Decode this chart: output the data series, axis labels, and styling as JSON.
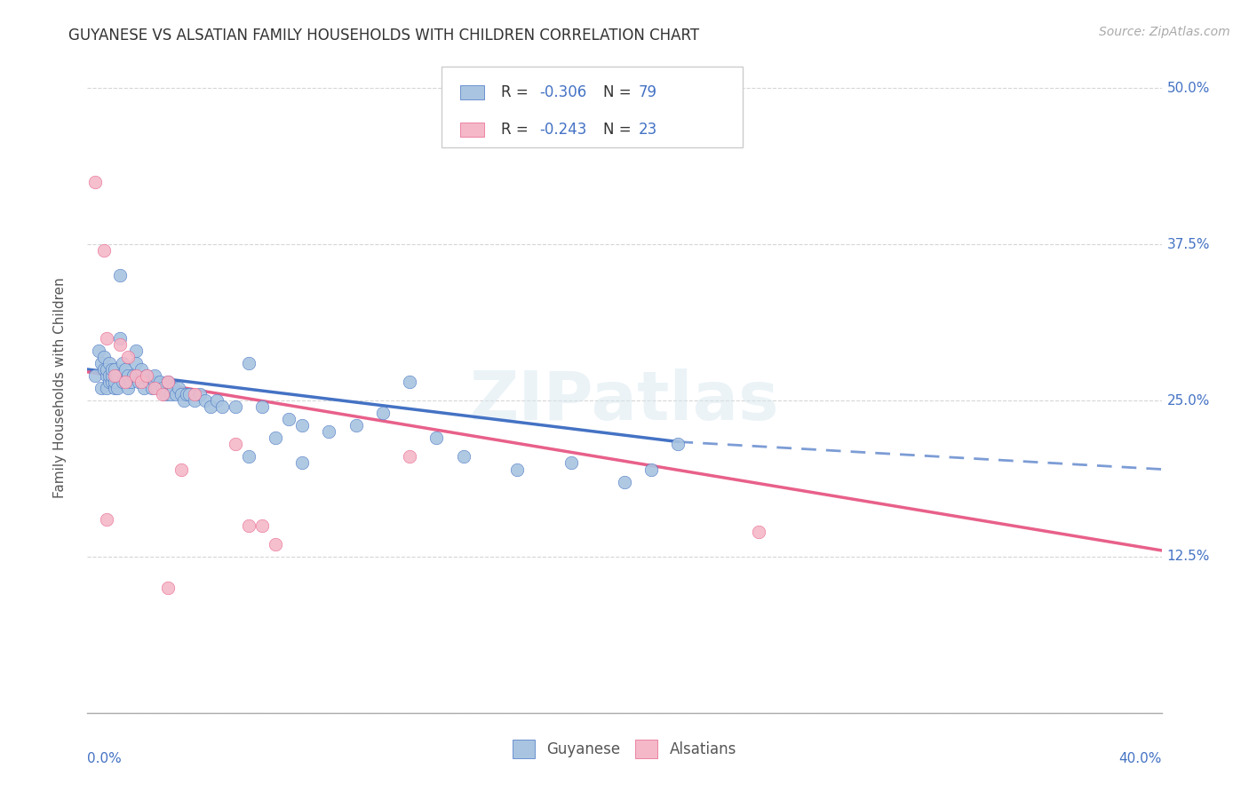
{
  "title": "GUYANESE VS ALSATIAN FAMILY HOUSEHOLDS WITH CHILDREN CORRELATION CHART",
  "source": "Source: ZipAtlas.com",
  "ylabel": "Family Households with Children",
  "xmin": 0.0,
  "xmax": 0.4,
  "ymin": 0.0,
  "ymax": 0.52,
  "guyanese_color": "#a8c4e0",
  "alsatian_color": "#f4b8c8",
  "guyanese_R": -0.306,
  "guyanese_N": 79,
  "alsatian_R": -0.243,
  "alsatian_N": 23,
  "blue_line_color": "#4472c4",
  "pink_line_color": "#e8608a",
  "watermark": "ZIPatlas",
  "guyanese_scatter_x": [
    0.003,
    0.004,
    0.005,
    0.005,
    0.006,
    0.006,
    0.007,
    0.007,
    0.007,
    0.008,
    0.008,
    0.008,
    0.009,
    0.009,
    0.009,
    0.01,
    0.01,
    0.01,
    0.011,
    0.011,
    0.012,
    0.012,
    0.013,
    0.013,
    0.014,
    0.014,
    0.015,
    0.015,
    0.016,
    0.017,
    0.018,
    0.018,
    0.019,
    0.02,
    0.02,
    0.021,
    0.022,
    0.023,
    0.024,
    0.025,
    0.025,
    0.026,
    0.027,
    0.028,
    0.029,
    0.03,
    0.031,
    0.032,
    0.033,
    0.034,
    0.035,
    0.036,
    0.037,
    0.038,
    0.04,
    0.042,
    0.044,
    0.046,
    0.048,
    0.05,
    0.055,
    0.06,
    0.065,
    0.07,
    0.075,
    0.08,
    0.09,
    0.1,
    0.11,
    0.12,
    0.13,
    0.14,
    0.16,
    0.18,
    0.2,
    0.21,
    0.22,
    0.06,
    0.08
  ],
  "guyanese_scatter_y": [
    0.27,
    0.29,
    0.26,
    0.28,
    0.275,
    0.285,
    0.26,
    0.27,
    0.275,
    0.265,
    0.27,
    0.28,
    0.265,
    0.27,
    0.275,
    0.26,
    0.265,
    0.275,
    0.26,
    0.27,
    0.3,
    0.35,
    0.265,
    0.28,
    0.265,
    0.275,
    0.26,
    0.27,
    0.265,
    0.27,
    0.28,
    0.29,
    0.265,
    0.265,
    0.275,
    0.26,
    0.27,
    0.265,
    0.26,
    0.265,
    0.27,
    0.26,
    0.265,
    0.26,
    0.255,
    0.265,
    0.255,
    0.26,
    0.255,
    0.26,
    0.255,
    0.25,
    0.255,
    0.255,
    0.25,
    0.255,
    0.25,
    0.245,
    0.25,
    0.245,
    0.245,
    0.28,
    0.245,
    0.22,
    0.235,
    0.23,
    0.225,
    0.23,
    0.24,
    0.265,
    0.22,
    0.205,
    0.195,
    0.2,
    0.185,
    0.195,
    0.215,
    0.205,
    0.2
  ],
  "alsatian_scatter_x": [
    0.003,
    0.006,
    0.007,
    0.01,
    0.012,
    0.014,
    0.015,
    0.018,
    0.02,
    0.022,
    0.025,
    0.028,
    0.03,
    0.035,
    0.04,
    0.055,
    0.06,
    0.065,
    0.07,
    0.12,
    0.007,
    0.25,
    0.03
  ],
  "alsatian_scatter_y": [
    0.425,
    0.37,
    0.3,
    0.27,
    0.295,
    0.265,
    0.285,
    0.27,
    0.265,
    0.27,
    0.26,
    0.255,
    0.265,
    0.195,
    0.255,
    0.215,
    0.15,
    0.15,
    0.135,
    0.205,
    0.155,
    0.145,
    0.1
  ],
  "blue_line_x_start": 0.0,
  "blue_line_x_solid_end": 0.22,
  "blue_line_x_end": 0.4,
  "blue_line_y_start": 0.275,
  "blue_line_y_solid_end": 0.217,
  "blue_line_y_end": 0.195,
  "pink_line_x_start": 0.0,
  "pink_line_x_end": 0.4,
  "pink_line_y_start": 0.273,
  "pink_line_y_end": 0.13
}
